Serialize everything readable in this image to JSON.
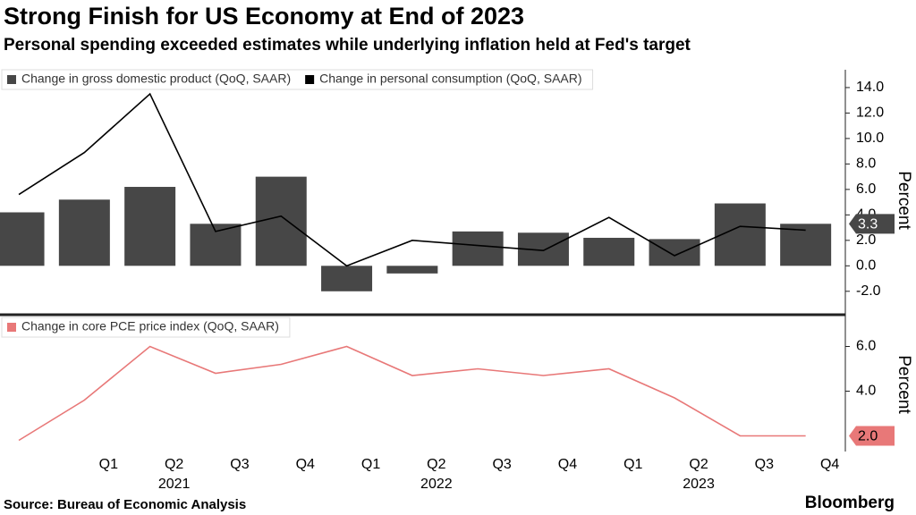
{
  "title": "Strong Finish for US Economy at End of 2023",
  "subtitle": "Personal spending exceeded estimates while underlying inflation held at Fed's target",
  "source": "Source:  Bureau of Economic Analysis",
  "brand": "Bloomberg",
  "chart_data": [
    {
      "type": "combo",
      "axis_label": "Percent",
      "categories": [
        null,
        "Q1",
        "Q2",
        "Q3",
        "Q4",
        "Q1",
        "Q2",
        "Q3",
        "Q4",
        "Q1",
        "Q2",
        "Q3",
        "Q4"
      ],
      "years": [
        "2021",
        "2022",
        "2023"
      ],
      "ylim": [
        -3.7,
        15.4
      ],
      "yticks": [
        {
          "value": -2,
          "label": "-2.0"
        },
        {
          "value": 0,
          "label": "0.0"
        },
        {
          "value": 2,
          "label": "2.0"
        },
        {
          "value": 4,
          "label": "4.0"
        },
        {
          "value": 6,
          "label": "6.0"
        },
        {
          "value": 8,
          "label": "8.0"
        },
        {
          "value": 10,
          "label": "10.0"
        },
        {
          "value": 12,
          "label": "12.0"
        },
        {
          "value": 14,
          "label": "14.0"
        }
      ],
      "series": [
        {
          "name": "Change in gross domestic product (QoQ, SAAR)",
          "type": "bar",
          "color": "#474747",
          "values": [
            4.2,
            5.2,
            6.2,
            3.3,
            7.0,
            -2.0,
            -0.6,
            2.7,
            2.6,
            2.2,
            2.1,
            4.9,
            3.3
          ]
        },
        {
          "name": "Change in personal consumption (QoQ, SAAR)",
          "type": "line",
          "color": "#000000",
          "values": [
            5.6,
            8.9,
            13.5,
            2.7,
            3.9,
            0.0,
            2.0,
            1.6,
            1.2,
            3.8,
            0.8,
            3.1,
            2.8
          ]
        }
      ]
    },
    {
      "type": "line",
      "axis_label": "Percent",
      "ylim": [
        1.3,
        7.3
      ],
      "yticks": [
        {
          "value": 4,
          "label": "4.0"
        },
        {
          "value": 6,
          "label": "6.0"
        }
      ],
      "series": [
        {
          "name": "Change in core PCE price index (QoQ, SAAR)",
          "type": "line",
          "color": "#e87878",
          "values": [
            1.8,
            3.6,
            6.0,
            4.8,
            5.2,
            6.0,
            4.7,
            5.0,
            4.7,
            5.0,
            3.7,
            2.0,
            2.0
          ],
          "value_labels": [
            null,
            null,
            null,
            null,
            null,
            null,
            null,
            null,
            null,
            null,
            null,
            null,
            "2.0"
          ]
        }
      ]
    }
  ]
}
